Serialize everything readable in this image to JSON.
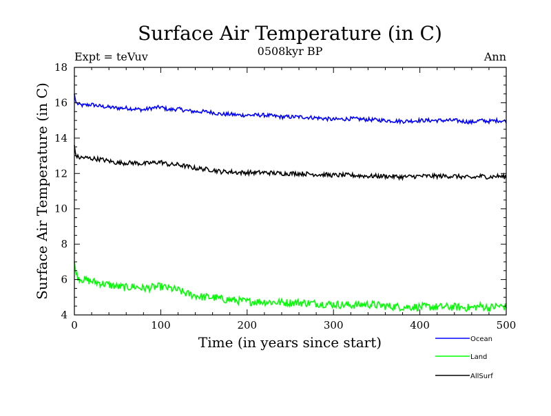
{
  "chart_data": {
    "type": "line",
    "title": "Surface Air Temperature (in C)",
    "subtitle": "0508kyr BP",
    "left_note": "Expt = teVuv",
    "right_note": "Ann",
    "xlabel": "Time (in years since start)",
    "ylabel": "Surface Air Temperature (in C)",
    "xlim": [
      0,
      500
    ],
    "ylim": [
      4,
      18
    ],
    "xticks": [
      0,
      100,
      200,
      300,
      400,
      500
    ],
    "yticks": [
      4,
      6,
      8,
      10,
      12,
      14,
      16,
      18
    ],
    "grid": false,
    "legend_position": "bottom-right, outside plot",
    "series": [
      {
        "name": "Ocean",
        "color": "#0000ff",
        "x": [
          0,
          1,
          2,
          5,
          10,
          20,
          30,
          40,
          50,
          60,
          70,
          80,
          90,
          100,
          110,
          120,
          130,
          140,
          150,
          160,
          170,
          180,
          190,
          200,
          220,
          240,
          260,
          280,
          300,
          320,
          340,
          360,
          380,
          400,
          420,
          440,
          460,
          470,
          480,
          490,
          500
        ],
        "y": [
          16.5,
          16.2,
          16.0,
          15.9,
          15.85,
          15.9,
          15.8,
          15.75,
          15.7,
          15.7,
          15.65,
          15.6,
          15.7,
          15.75,
          15.6,
          15.65,
          15.55,
          15.5,
          15.5,
          15.45,
          15.35,
          15.35,
          15.3,
          15.3,
          15.3,
          15.2,
          15.2,
          15.15,
          15.05,
          15.1,
          15.05,
          15.0,
          14.95,
          15.0,
          15.0,
          15.0,
          14.9,
          15.0,
          14.95,
          15.0,
          14.95
        ]
      },
      {
        "name": "Land",
        "color": "#00ff00",
        "x": [
          0,
          1,
          2,
          5,
          10,
          20,
          30,
          40,
          50,
          60,
          70,
          80,
          90,
          100,
          110,
          120,
          130,
          140,
          150,
          160,
          170,
          180,
          190,
          200,
          220,
          240,
          260,
          280,
          300,
          320,
          340,
          360,
          380,
          400,
          420,
          440,
          460,
          470,
          480,
          490,
          500
        ],
        "y": [
          7.0,
          6.6,
          6.3,
          6.1,
          6.0,
          5.9,
          5.8,
          5.7,
          5.6,
          5.55,
          5.6,
          5.5,
          5.55,
          5.6,
          5.5,
          5.4,
          5.2,
          5.1,
          5.0,
          5.0,
          4.9,
          4.85,
          4.8,
          4.75,
          4.75,
          4.7,
          4.7,
          4.65,
          4.6,
          4.55,
          4.6,
          4.5,
          4.45,
          4.45,
          4.45,
          4.45,
          4.4,
          4.5,
          4.4,
          4.5,
          4.45
        ]
      },
      {
        "name": "AllSurf",
        "color": "#000000",
        "x": [
          0,
          1,
          2,
          5,
          10,
          20,
          30,
          40,
          50,
          60,
          70,
          80,
          90,
          100,
          110,
          120,
          130,
          140,
          150,
          160,
          170,
          180,
          190,
          200,
          220,
          240,
          260,
          280,
          300,
          320,
          340,
          360,
          380,
          400,
          420,
          440,
          460,
          470,
          480,
          490,
          500
        ],
        "y": [
          13.6,
          13.2,
          13.0,
          12.9,
          12.9,
          12.85,
          12.8,
          12.7,
          12.6,
          12.6,
          12.6,
          12.55,
          12.6,
          12.65,
          12.5,
          12.5,
          12.4,
          12.3,
          12.25,
          12.2,
          12.1,
          12.1,
          12.05,
          12.05,
          12.05,
          12.0,
          12.0,
          11.95,
          11.9,
          11.9,
          11.85,
          11.85,
          11.8,
          11.85,
          11.85,
          11.85,
          11.75,
          11.85,
          11.8,
          11.85,
          11.8
        ]
      }
    ]
  }
}
